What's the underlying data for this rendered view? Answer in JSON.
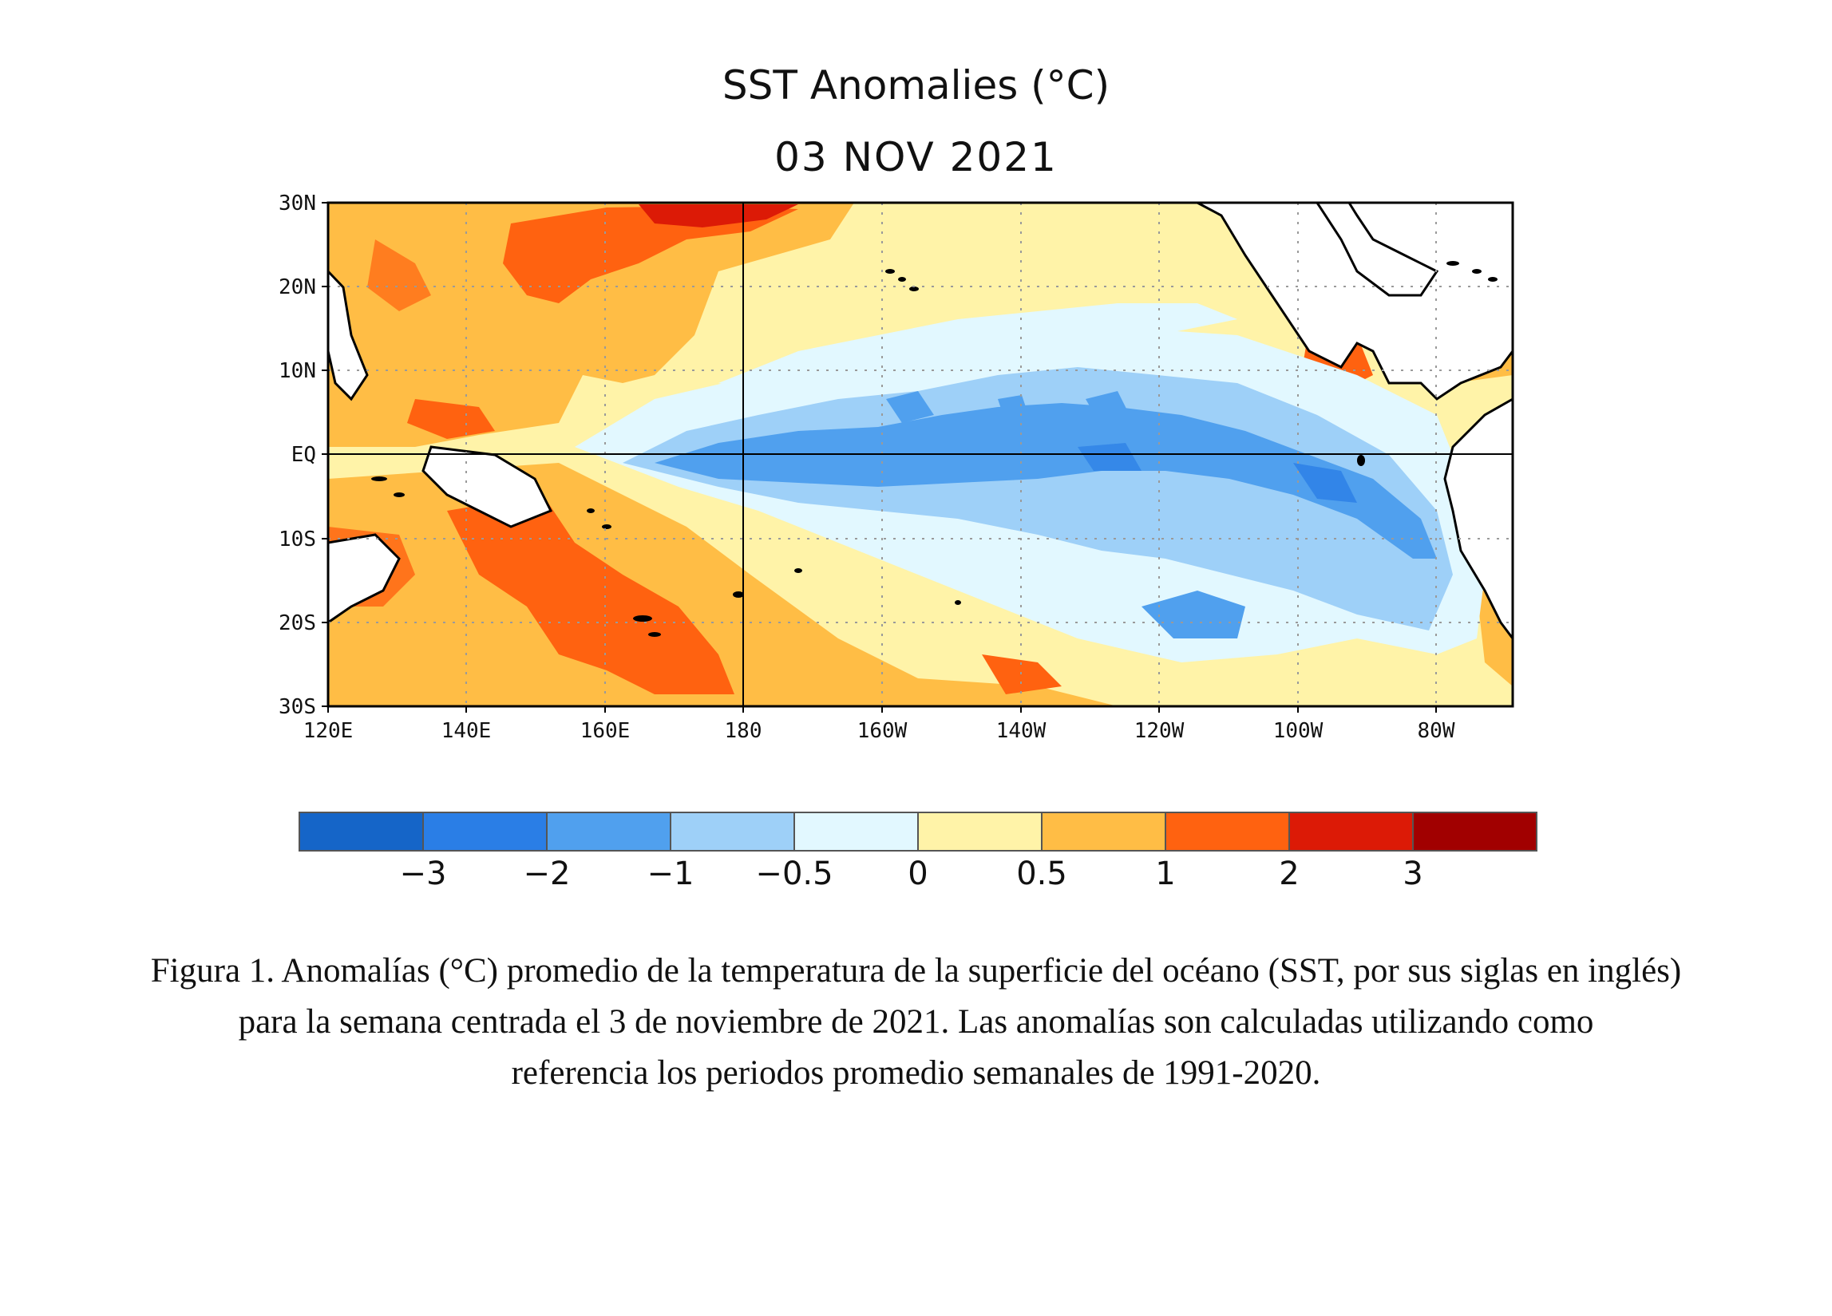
{
  "title": "SST Anomalies (°C)",
  "date": "03 NOV 2021",
  "map": {
    "lat_labels": [
      "30N",
      "20N",
      "10N",
      "EQ",
      "10S",
      "20S",
      "30S"
    ],
    "lon_labels": [
      "120E",
      "140E",
      "160E",
      "180",
      "160W",
      "140W",
      "120W",
      "100W",
      "80W"
    ]
  },
  "colorbar": {
    "colors": [
      "#1565c8",
      "#2a7ee6",
      "#50a0ee",
      "#9ed0f8",
      "#e2f8ff",
      "#fff3a8",
      "#ffbd45",
      "#ff6210",
      "#dc1a06",
      "#a10000"
    ],
    "tick_labels": [
      "−3",
      "−2",
      "−1",
      "−0.5",
      "0",
      "0.5",
      "1",
      "2",
      "3"
    ]
  },
  "caption": {
    "line1": "Figura 1. Anomalías (°C) promedio de la temperatura de la superficie del océano (SST, por sus siglas en inglés)",
    "line2": "para la semana centrada el 3 de noviembre de 2021. Las anomalías son calculadas utilizando como",
    "line3": "referencia los periodos promedio semanales de 1991-2020."
  }
}
